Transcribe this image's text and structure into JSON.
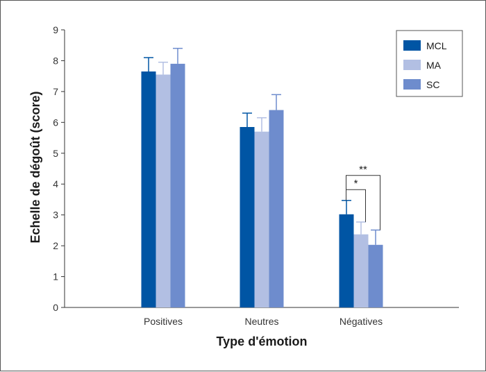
{
  "chart_data": {
    "type": "bar",
    "title": "",
    "xlabel": "Type d'émotion",
    "ylabel": "Echelle de dégoût (score)",
    "ylim": [
      0,
      9
    ],
    "yticks": [
      "0",
      "1",
      "2",
      "3",
      "4",
      "5",
      "6",
      "7",
      "8",
      "9"
    ],
    "categories": [
      "Positives",
      "Neutres",
      "Négatives"
    ],
    "series": [
      {
        "name": "MCL",
        "color": "#0055a4",
        "values": [
          7.65,
          5.85,
          3.02
        ],
        "errors": [
          0.45,
          0.45,
          0.45
        ]
      },
      {
        "name": "MA",
        "color": "#b2bfe3",
        "values": [
          7.55,
          5.7,
          2.37
        ],
        "errors": [
          0.4,
          0.45,
          0.4
        ]
      },
      {
        "name": "SC",
        "color": "#6e8ccd",
        "values": [
          7.9,
          6.4,
          2.03
        ],
        "errors": [
          0.5,
          0.5,
          0.48
        ]
      }
    ],
    "grid": false,
    "legend_position": "top-right",
    "annotations": [
      {
        "label": "*",
        "category": "Négatives",
        "from_series": "MCL",
        "to_series": "MA"
      },
      {
        "label": "**",
        "category": "Négatives",
        "from_series": "MCL",
        "to_series": "SC"
      }
    ]
  }
}
